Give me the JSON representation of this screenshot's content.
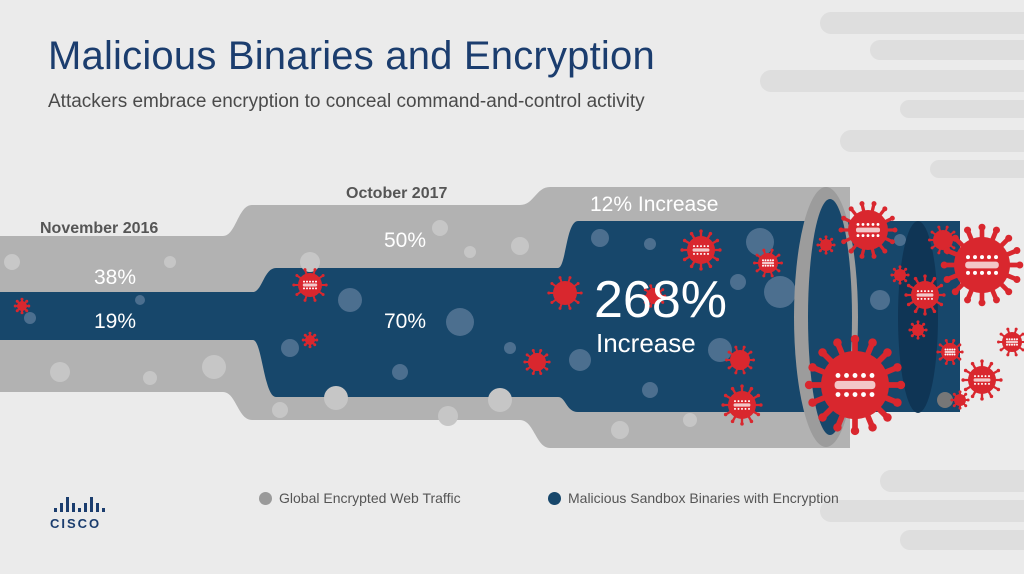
{
  "title": "Malicious Binaries and Encryption",
  "subtitle": "Attackers embrace encryption to conceal command-and-control activity",
  "chart_data": {
    "type": "area",
    "periods": [
      "November 2016",
      "October 2017"
    ],
    "series": [
      {
        "name": "Global Encrypted Web Traffic",
        "values": [
          38,
          50
        ],
        "color": "#b1b1b1",
        "change_label": "12% Increase"
      },
      {
        "name": "Malicious Sandbox Binaries with Encryption",
        "values": [
          19,
          70
        ],
        "color": "#17476b",
        "change_label": "268%",
        "change_word": "Increase"
      }
    ],
    "value_labels": {
      "grey": [
        "38%",
        "50%"
      ],
      "blue": [
        "19%",
        "70%"
      ]
    }
  },
  "legend": [
    {
      "label": "Global Encrypted Web Traffic",
      "color": "#9a9a9a"
    },
    {
      "label": "Malicious Sandbox Binaries with Encryption",
      "color": "#17476b"
    }
  ],
  "brand": {
    "name": "CISCO",
    "color": "#1b3d6e"
  },
  "virus_color": "#d9272e"
}
